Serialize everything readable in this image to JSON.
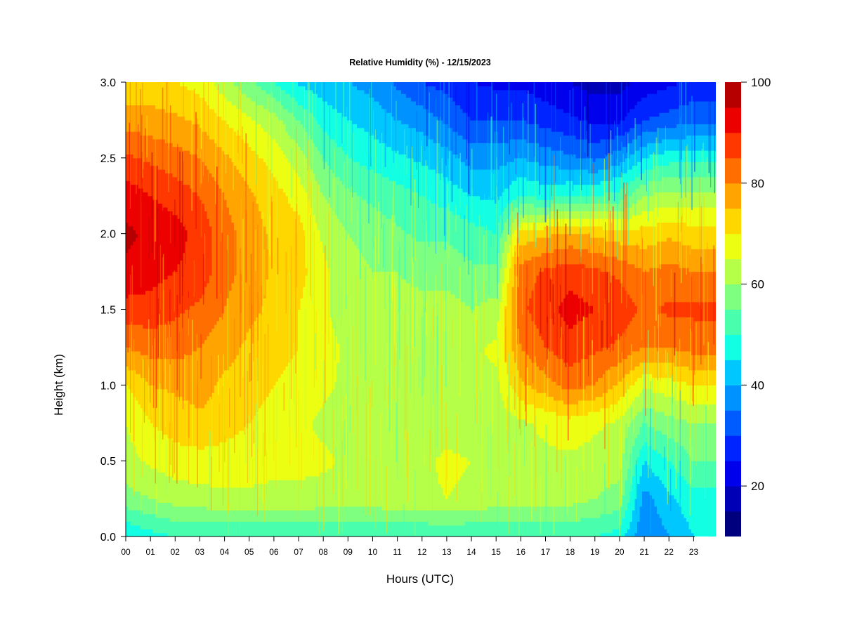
{
  "chart_data": {
    "type": "heatmap",
    "title": "Relative Humidity (%) - 12/15/2023",
    "xlabel": "Hours (UTC)",
    "ylabel": "Height (km)",
    "x_ticks": [
      "00",
      "01",
      "02",
      "03",
      "04",
      "05",
      "06",
      "07",
      "08",
      "09",
      "10",
      "11",
      "12",
      "13",
      "14",
      "15",
      "16",
      "17",
      "18",
      "19",
      "20",
      "21",
      "22",
      "23"
    ],
    "xlim": [
      0,
      23.9
    ],
    "y_ticks": [
      "0.0",
      "0.5",
      "1.0",
      "1.5",
      "2.0",
      "2.5",
      "3.0"
    ],
    "ylim": [
      0,
      3
    ],
    "colorbar": {
      "label_ticks": [
        "20",
        "40",
        "60",
        "80",
        "100"
      ],
      "range": [
        10,
        100
      ],
      "level_step": 5,
      "colors": [
        "#00007f",
        "#0000b6",
        "#0000ec",
        "#0024ff",
        "#005cff",
        "#0092ff",
        "#00c8ff",
        "#12ffe4",
        "#49ffad",
        "#7fff7f",
        "#b6ff49",
        "#ecff12",
        "#ffd700",
        "#ffa400",
        "#ff6e00",
        "#ff3800",
        "#ec0000",
        "#b60000"
      ]
    },
    "hours": [
      0,
      1,
      2,
      3,
      4,
      5,
      6,
      7,
      8,
      9,
      10,
      11,
      12,
      13,
      14,
      15,
      16,
      17,
      18,
      19,
      20,
      21,
      22,
      23
    ],
    "heights": [
      0.0,
      0.25,
      0.5,
      0.75,
      1.0,
      1.25,
      1.5,
      1.75,
      2.0,
      2.25,
      2.5,
      2.75,
      3.0
    ],
    "values": [
      [
        45,
        58,
        63,
        65,
        70,
        80,
        88,
        94,
        96,
        93,
        86,
        78,
        70
      ],
      [
        48,
        60,
        66,
        70,
        75,
        82,
        88,
        92,
        94,
        90,
        84,
        77,
        72
      ],
      [
        50,
        62,
        68,
        72,
        76,
        82,
        86,
        90,
        92,
        88,
        82,
        76,
        70
      ],
      [
        50,
        63,
        68,
        74,
        77,
        80,
        84,
        88,
        88,
        85,
        80,
        74,
        68
      ],
      [
        50,
        64,
        68,
        72,
        74,
        77,
        80,
        82,
        82,
        80,
        76,
        70,
        62
      ],
      [
        50,
        64,
        67,
        70,
        72,
        74,
        76,
        78,
        78,
        76,
        72,
        66,
        56
      ],
      [
        50,
        64,
        66,
        68,
        70,
        72,
        74,
        74,
        74,
        72,
        68,
        62,
        50
      ],
      [
        50,
        64,
        66,
        66,
        68,
        70,
        70,
        72,
        72,
        68,
        62,
        55,
        44
      ],
      [
        50,
        63,
        66,
        64,
        66,
        67,
        66,
        66,
        64,
        60,
        55,
        48,
        42
      ],
      [
        50,
        63,
        64,
        62,
        64,
        64,
        62,
        62,
        60,
        56,
        50,
        45,
        40
      ],
      [
        50,
        63,
        64,
        62,
        64,
        64,
        62,
        60,
        58,
        54,
        48,
        43,
        38
      ],
      [
        50,
        64,
        64,
        62,
        64,
        64,
        62,
        60,
        56,
        52,
        46,
        40,
        34
      ],
      [
        50,
        64,
        64,
        62,
        64,
        64,
        62,
        58,
        54,
        50,
        44,
        38,
        30
      ],
      [
        50,
        65,
        66,
        63,
        65,
        64,
        62,
        58,
        54,
        48,
        42,
        34,
        28
      ],
      [
        50,
        64,
        65,
        62,
        64,
        64,
        60,
        56,
        52,
        45,
        38,
        30,
        25
      ],
      [
        50,
        63,
        64,
        62,
        64,
        66,
        62,
        56,
        50,
        44,
        38,
        30,
        24
      ],
      [
        50,
        62,
        64,
        64,
        74,
        80,
        84,
        82,
        72,
        50,
        40,
        30,
        24
      ],
      [
        50,
        62,
        64,
        66,
        78,
        85,
        88,
        86,
        74,
        48,
        38,
        28,
        22
      ],
      [
        50,
        62,
        64,
        68,
        82,
        88,
        92,
        88,
        76,
        50,
        36,
        26,
        20
      ],
      [
        50,
        60,
        63,
        66,
        80,
        86,
        90,
        86,
        74,
        50,
        34,
        24,
        18
      ],
      [
        48,
        58,
        62,
        64,
        74,
        84,
        88,
        84,
        72,
        52,
        38,
        24,
        18
      ],
      [
        35,
        38,
        45,
        55,
        66,
        80,
        84,
        80,
        72,
        60,
        45,
        30,
        22
      ],
      [
        40,
        44,
        50,
        58,
        68,
        80,
        86,
        82,
        74,
        62,
        48,
        32,
        24
      ],
      [
        45,
        48,
        55,
        60,
        70,
        82,
        86,
        80,
        72,
        62,
        48,
        34,
        26
      ]
    ]
  }
}
